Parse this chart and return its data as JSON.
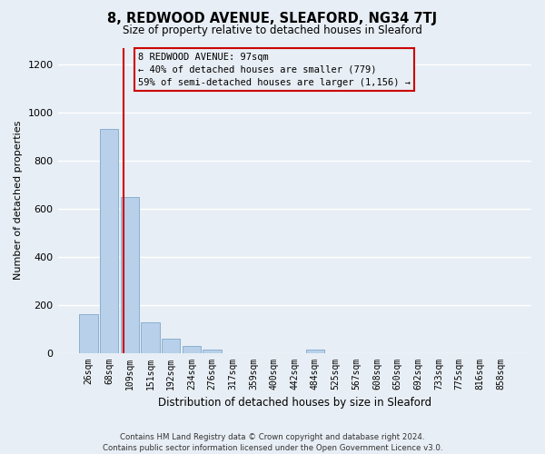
{
  "title": "8, REDWOOD AVENUE, SLEAFORD, NG34 7TJ",
  "subtitle": "Size of property relative to detached houses in Sleaford",
  "xlabel": "Distribution of detached houses by size in Sleaford",
  "ylabel": "Number of detached properties",
  "bar_labels": [
    "26sqm",
    "68sqm",
    "109sqm",
    "151sqm",
    "192sqm",
    "234sqm",
    "276sqm",
    "317sqm",
    "359sqm",
    "400sqm",
    "442sqm",
    "484sqm",
    "525sqm",
    "567sqm",
    "608sqm",
    "650sqm",
    "692sqm",
    "733sqm",
    "775sqm",
    "816sqm",
    "858sqm"
  ],
  "bar_values": [
    160,
    930,
    650,
    125,
    60,
    28,
    12,
    0,
    0,
    0,
    0,
    13,
    0,
    0,
    0,
    0,
    0,
    0,
    0,
    0,
    0
  ],
  "bar_color": "#b8d0ea",
  "bar_edge_color": "#8ab0d0",
  "property_line_color": "#cc0000",
  "ylim": [
    0,
    1270
  ],
  "yticks": [
    0,
    200,
    400,
    600,
    800,
    1000,
    1200
  ],
  "annotation_title": "8 REDWOOD AVENUE: 97sqm",
  "annotation_line1": "← 40% of detached houses are smaller (779)",
  "annotation_line2": "59% of semi-detached houses are larger (1,156) →",
  "annotation_box_color": "#cc0000",
  "footer_line1": "Contains HM Land Registry data © Crown copyright and database right 2024.",
  "footer_line2": "Contains public sector information licensed under the Open Government Licence v3.0.",
  "background_color": "#e8eef5",
  "grid_color": "#ffffff"
}
